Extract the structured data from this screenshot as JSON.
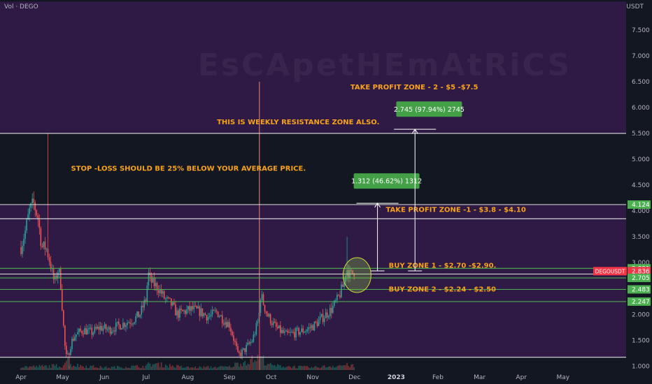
{
  "header": {
    "volume_label": "Vol · DEGO",
    "currency": "USDT"
  },
  "watermark": "EsCApetHEmAtRiCS",
  "chart_data": {
    "type": "candlestick",
    "symbol": "DEGOUSDT",
    "last_price": 2.836,
    "y_axis": {
      "min": 0.95,
      "max": 8.0,
      "grid": false,
      "ticks": [
        "1.000",
        "1.500",
        "2.000",
        "2.500",
        "3.000",
        "3.500",
        "4.000",
        "4.500",
        "5.000",
        "5.500",
        "6.000",
        "6.500",
        "7.000",
        "7.500"
      ]
    },
    "x_axis": {
      "ticks": [
        {
          "label": "Apr",
          "month_index": 0
        },
        {
          "label": "May",
          "month_index": 1
        },
        {
          "label": "Jun",
          "month_index": 2
        },
        {
          "label": "Jul",
          "month_index": 3
        },
        {
          "label": "Aug",
          "month_index": 4
        },
        {
          "label": "Sep",
          "month_index": 5
        },
        {
          "label": "Oct",
          "month_index": 6
        },
        {
          "label": "Nov",
          "month_index": 7
        },
        {
          "label": "Dec",
          "month_index": 8
        },
        {
          "label": "2023",
          "month_index": 9,
          "bold": true
        },
        {
          "label": "Feb",
          "month_index": 10
        },
        {
          "label": "Mar",
          "month_index": 11
        },
        {
          "label": "Apr",
          "month_index": 12
        },
        {
          "label": "May",
          "month_index": 13
        }
      ]
    },
    "price_path": [
      [
        0,
        3.3
      ],
      [
        0.1,
        3.6
      ],
      [
        0.2,
        4.0
      ],
      [
        0.3,
        4.15
      ],
      [
        0.4,
        3.9
      ],
      [
        0.5,
        3.3
      ],
      [
        0.6,
        3.3
      ],
      [
        0.7,
        3.0
      ],
      [
        0.8,
        2.6
      ],
      [
        0.9,
        2.9
      ],
      [
        0.95,
        2.6
      ],
      [
        1.0,
        2.0
      ],
      [
        1.05,
        1.4
      ],
      [
        1.1,
        1.1
      ],
      [
        1.2,
        1.45
      ],
      [
        1.3,
        1.6
      ],
      [
        1.5,
        1.7
      ],
      [
        1.7,
        1.65
      ],
      [
        1.9,
        1.75
      ],
      [
        2.1,
        1.7
      ],
      [
        2.4,
        1.8
      ],
      [
        2.7,
        1.9
      ],
      [
        2.85,
        2.0
      ],
      [
        3.0,
        2.3
      ],
      [
        3.05,
        2.8
      ],
      [
        3.1,
        2.65
      ],
      [
        3.3,
        2.5
      ],
      [
        3.45,
        2.3
      ],
      [
        3.6,
        2.2
      ],
      [
        3.75,
        2.0
      ],
      [
        3.9,
        2.05
      ],
      [
        4.1,
        2.1
      ],
      [
        4.3,
        2.05
      ],
      [
        4.5,
        1.95
      ],
      [
        4.7,
        2.05
      ],
      [
        4.85,
        1.9
      ],
      [
        5.0,
        1.8
      ],
      [
        5.15,
        1.4
      ],
      [
        5.2,
        1.2
      ],
      [
        5.35,
        1.3
      ],
      [
        5.55,
        1.5
      ],
      [
        5.7,
        1.9
      ],
      [
        5.75,
        2.4
      ],
      [
        5.8,
        2.25
      ],
      [
        5.9,
        2.0
      ],
      [
        6.1,
        1.75
      ],
      [
        6.35,
        1.6
      ],
      [
        6.6,
        1.65
      ],
      [
        6.85,
        1.7
      ],
      [
        7.05,
        1.8
      ],
      [
        7.25,
        1.95
      ],
      [
        7.45,
        2.1
      ],
      [
        7.6,
        2.3
      ],
      [
        7.75,
        2.6
      ],
      [
        7.8,
        2.9
      ],
      [
        7.9,
        2.75
      ],
      [
        8.0,
        2.84
      ]
    ],
    "volume_path": [
      [
        0,
        0.25
      ],
      [
        0.6,
        0.3
      ],
      [
        1.0,
        0.35
      ],
      [
        1.1,
        0.9
      ],
      [
        1.2,
        0.4
      ],
      [
        2.0,
        0.2
      ],
      [
        3.0,
        0.3
      ],
      [
        3.1,
        0.5
      ],
      [
        4.0,
        0.2
      ],
      [
        5.0,
        0.25
      ],
      [
        5.15,
        0.45
      ],
      [
        5.75,
        1.0
      ],
      [
        6.0,
        0.35
      ],
      [
        7.0,
        0.2
      ],
      [
        7.8,
        0.4
      ],
      [
        8.0,
        0.3
      ]
    ],
    "spikes": [
      {
        "x": 0.65,
        "high": 5.5
      },
      {
        "x": 1.15,
        "low": 0.95
      },
      {
        "x": 5.72,
        "high": 6.5,
        "red_line": true
      },
      {
        "x": 7.82,
        "high": 3.5
      }
    ],
    "zones": [
      {
        "price": 5.5,
        "color": "#e0e0e0"
      },
      {
        "price": 4.124,
        "color": "#e0e0e0"
      },
      {
        "price": 3.85,
        "color": "#e0e0e0"
      },
      {
        "price": 2.891,
        "color": "#4caf50"
      },
      {
        "price": 2.78,
        "color": "#e0e0e0"
      },
      {
        "price": 2.705,
        "color": "#4caf50"
      },
      {
        "price": 2.483,
        "color": "#4caf50"
      },
      {
        "price": 2.247,
        "color": "#4caf50"
      },
      {
        "price": 1.17,
        "color": "#e0e0e0"
      }
    ],
    "price_tags": [
      {
        "label": "4.124",
        "price": 4.124,
        "bg": "#4caf50"
      },
      {
        "label": "2.891",
        "price": 2.891,
        "bg": "#4caf50"
      },
      {
        "label": "2.836",
        "price": 2.836,
        "bg": "#f23645"
      },
      {
        "label": "2.705",
        "price": 2.705,
        "bg": "#4caf50"
      },
      {
        "label": "2.483",
        "price": 2.483,
        "bg": "#4caf50"
      },
      {
        "label": "2.247",
        "price": 2.247,
        "bg": "#4caf50"
      }
    ],
    "annotations": [
      {
        "text": "TAKE PROFIT ZONE - 2 - $5 -$7.5",
        "x": 7.9,
        "price": 6.35
      },
      {
        "text": "THIS IS WEEKLY RESISTANCE ZONE ALSO.",
        "x": 4.7,
        "price": 5.68
      },
      {
        "text": "STOP -LOSS SHOULD BE 25% BELOW YOUR AVERAGE PRICE.",
        "x": 1.2,
        "price": 4.78
      },
      {
        "text": "TAKE PROFIT ZONE -1 - $3.8 - $4.10",
        "x": 8.75,
        "price": 3.98
      },
      {
        "text": "BUY ZONE 1 - $2.70 -$2.90.",
        "x": 8.82,
        "price": 2.9
      },
      {
        "text": "BUY ZONE 2 - $2.24 - $2.50",
        "x": 8.82,
        "price": 2.44
      }
    ],
    "measures": [
      {
        "label": "1.312 (46.62%) 1312",
        "x": 8.55,
        "from": 2.84,
        "to": 4.15,
        "box_x": 7.98,
        "box_price": 4.58
      },
      {
        "label": "2.745 (97.94%) 2745",
        "x": 9.45,
        "from": 2.84,
        "to": 5.58,
        "box_x": 9.0,
        "box_price": 5.97
      }
    ],
    "highlight_circle": {
      "x": 8.06,
      "price": 2.76
    },
    "symbol_tag": {
      "label": "DEGOUSDT",
      "price": 2.836
    }
  }
}
